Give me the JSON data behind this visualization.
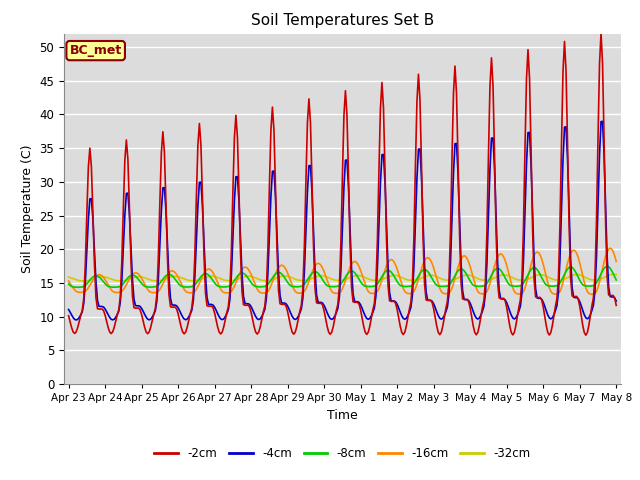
{
  "title": "Soil Temperatures Set B",
  "xlabel": "Time",
  "ylabel": "Soil Temperature (C)",
  "ylim": [
    0,
    52
  ],
  "yticks": [
    0,
    5,
    10,
    15,
    20,
    25,
    30,
    35,
    40,
    45,
    50
  ],
  "annotation": "BC_met",
  "x_tick_labels": [
    "Apr 23",
    "Apr 24",
    "Apr 25",
    "Apr 26",
    "Apr 27",
    "Apr 28",
    "Apr 29",
    "Apr 30",
    "May 1",
    "May 2",
    "May 3",
    "May 4",
    "May 5",
    "May 6",
    "May 7",
    "May 8"
  ],
  "x_tick_positions": [
    0,
    24,
    48,
    72,
    96,
    120,
    144,
    168,
    192,
    216,
    240,
    264,
    288,
    312,
    336,
    360
  ],
  "legend_labels": [
    "-2cm",
    "-4cm",
    "-8cm",
    "-16cm",
    "-32cm"
  ],
  "line_colors": [
    "#cc0000",
    "#0000cc",
    "#00cc00",
    "#ff8800",
    "#cccc00"
  ],
  "plot_bg": "#dcdcdc",
  "fig_bg": "#ffffff",
  "grid_color": "#ffffff"
}
